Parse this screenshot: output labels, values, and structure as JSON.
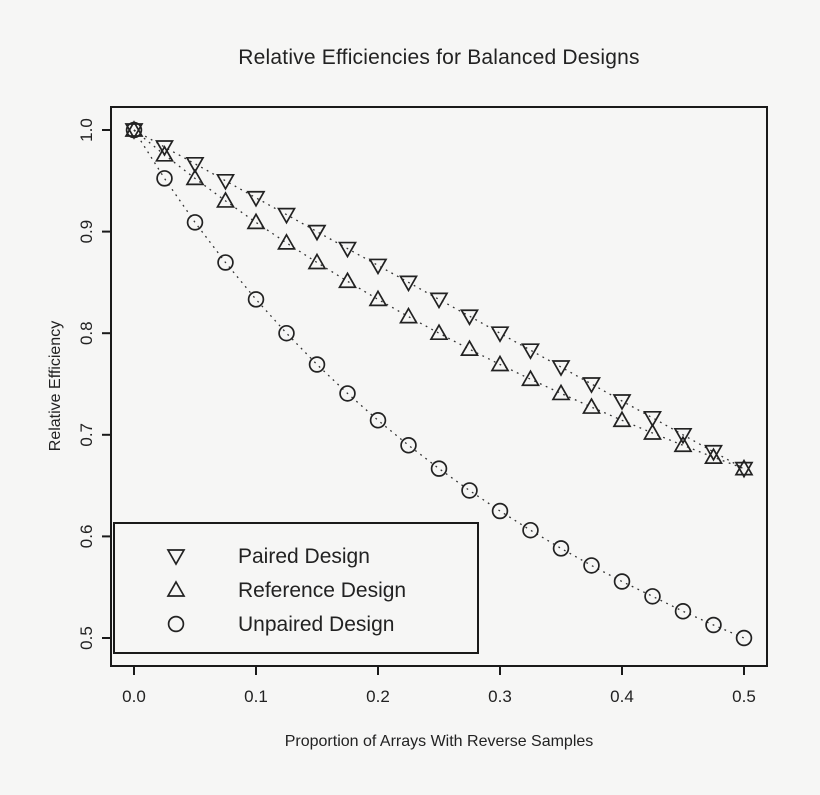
{
  "colors": {
    "background": "#f6f6f5",
    "foreground": "#222222",
    "plot_border": "#1a1a1a",
    "dotted_line": "#333333"
  },
  "chart_data": {
    "type": "scatter",
    "title": "Relative Efficiencies for Balanced Designs",
    "xlabel": "Proportion of Arrays With Reverse Samples",
    "ylabel": "Relative Efficiency",
    "xlim": [
      0.0,
      0.5
    ],
    "ylim": [
      0.5,
      1.0
    ],
    "grid": false,
    "line_style": "dotted",
    "legend_position": "bottom-left",
    "x_tick_labels": [
      "0.0",
      "0.1",
      "0.2",
      "0.3",
      "0.4",
      "0.5"
    ],
    "x_tick_values": [
      0.0,
      0.1,
      0.2,
      0.3,
      0.4,
      0.5
    ],
    "y_tick_labels": [
      "0.5",
      "0.6",
      "0.7",
      "0.8",
      "0.9",
      "1.0"
    ],
    "y_tick_values": [
      0.5,
      0.6,
      0.7,
      0.8,
      0.9,
      1.0
    ],
    "x": [
      0.0,
      0.025,
      0.05,
      0.075,
      0.1,
      0.125,
      0.15,
      0.175,
      0.2,
      0.225,
      0.25,
      0.275,
      0.3,
      0.325,
      0.35,
      0.375,
      0.4,
      0.425,
      0.45,
      0.475,
      0.5
    ],
    "series": [
      {
        "name": "Paired Design",
        "marker": "triangle-down",
        "values": [
          1.0,
          0.9833,
          0.9667,
          0.95,
          0.9333,
          0.9167,
          0.9,
          0.8833,
          0.8667,
          0.85,
          0.8333,
          0.8167,
          0.8,
          0.7833,
          0.7667,
          0.75,
          0.7333,
          0.7167,
          0.7,
          0.6833,
          0.6667
        ]
      },
      {
        "name": "Reference Design",
        "marker": "triangle-up",
        "values": [
          1.0,
          0.9756,
          0.9524,
          0.9302,
          0.9091,
          0.8889,
          0.8696,
          0.8511,
          0.8333,
          0.8163,
          0.8,
          0.7843,
          0.7692,
          0.7547,
          0.7407,
          0.7273,
          0.7143,
          0.7018,
          0.6897,
          0.678,
          0.6667
        ]
      },
      {
        "name": "Unpaired Design",
        "marker": "circle",
        "values": [
          1.0,
          0.9524,
          0.9091,
          0.8696,
          0.8333,
          0.8,
          0.7692,
          0.7407,
          0.7143,
          0.6897,
          0.6667,
          0.6452,
          0.625,
          0.6061,
          0.5882,
          0.5714,
          0.5556,
          0.541,
          0.5263,
          0.5128,
          0.5
        ]
      }
    ]
  }
}
